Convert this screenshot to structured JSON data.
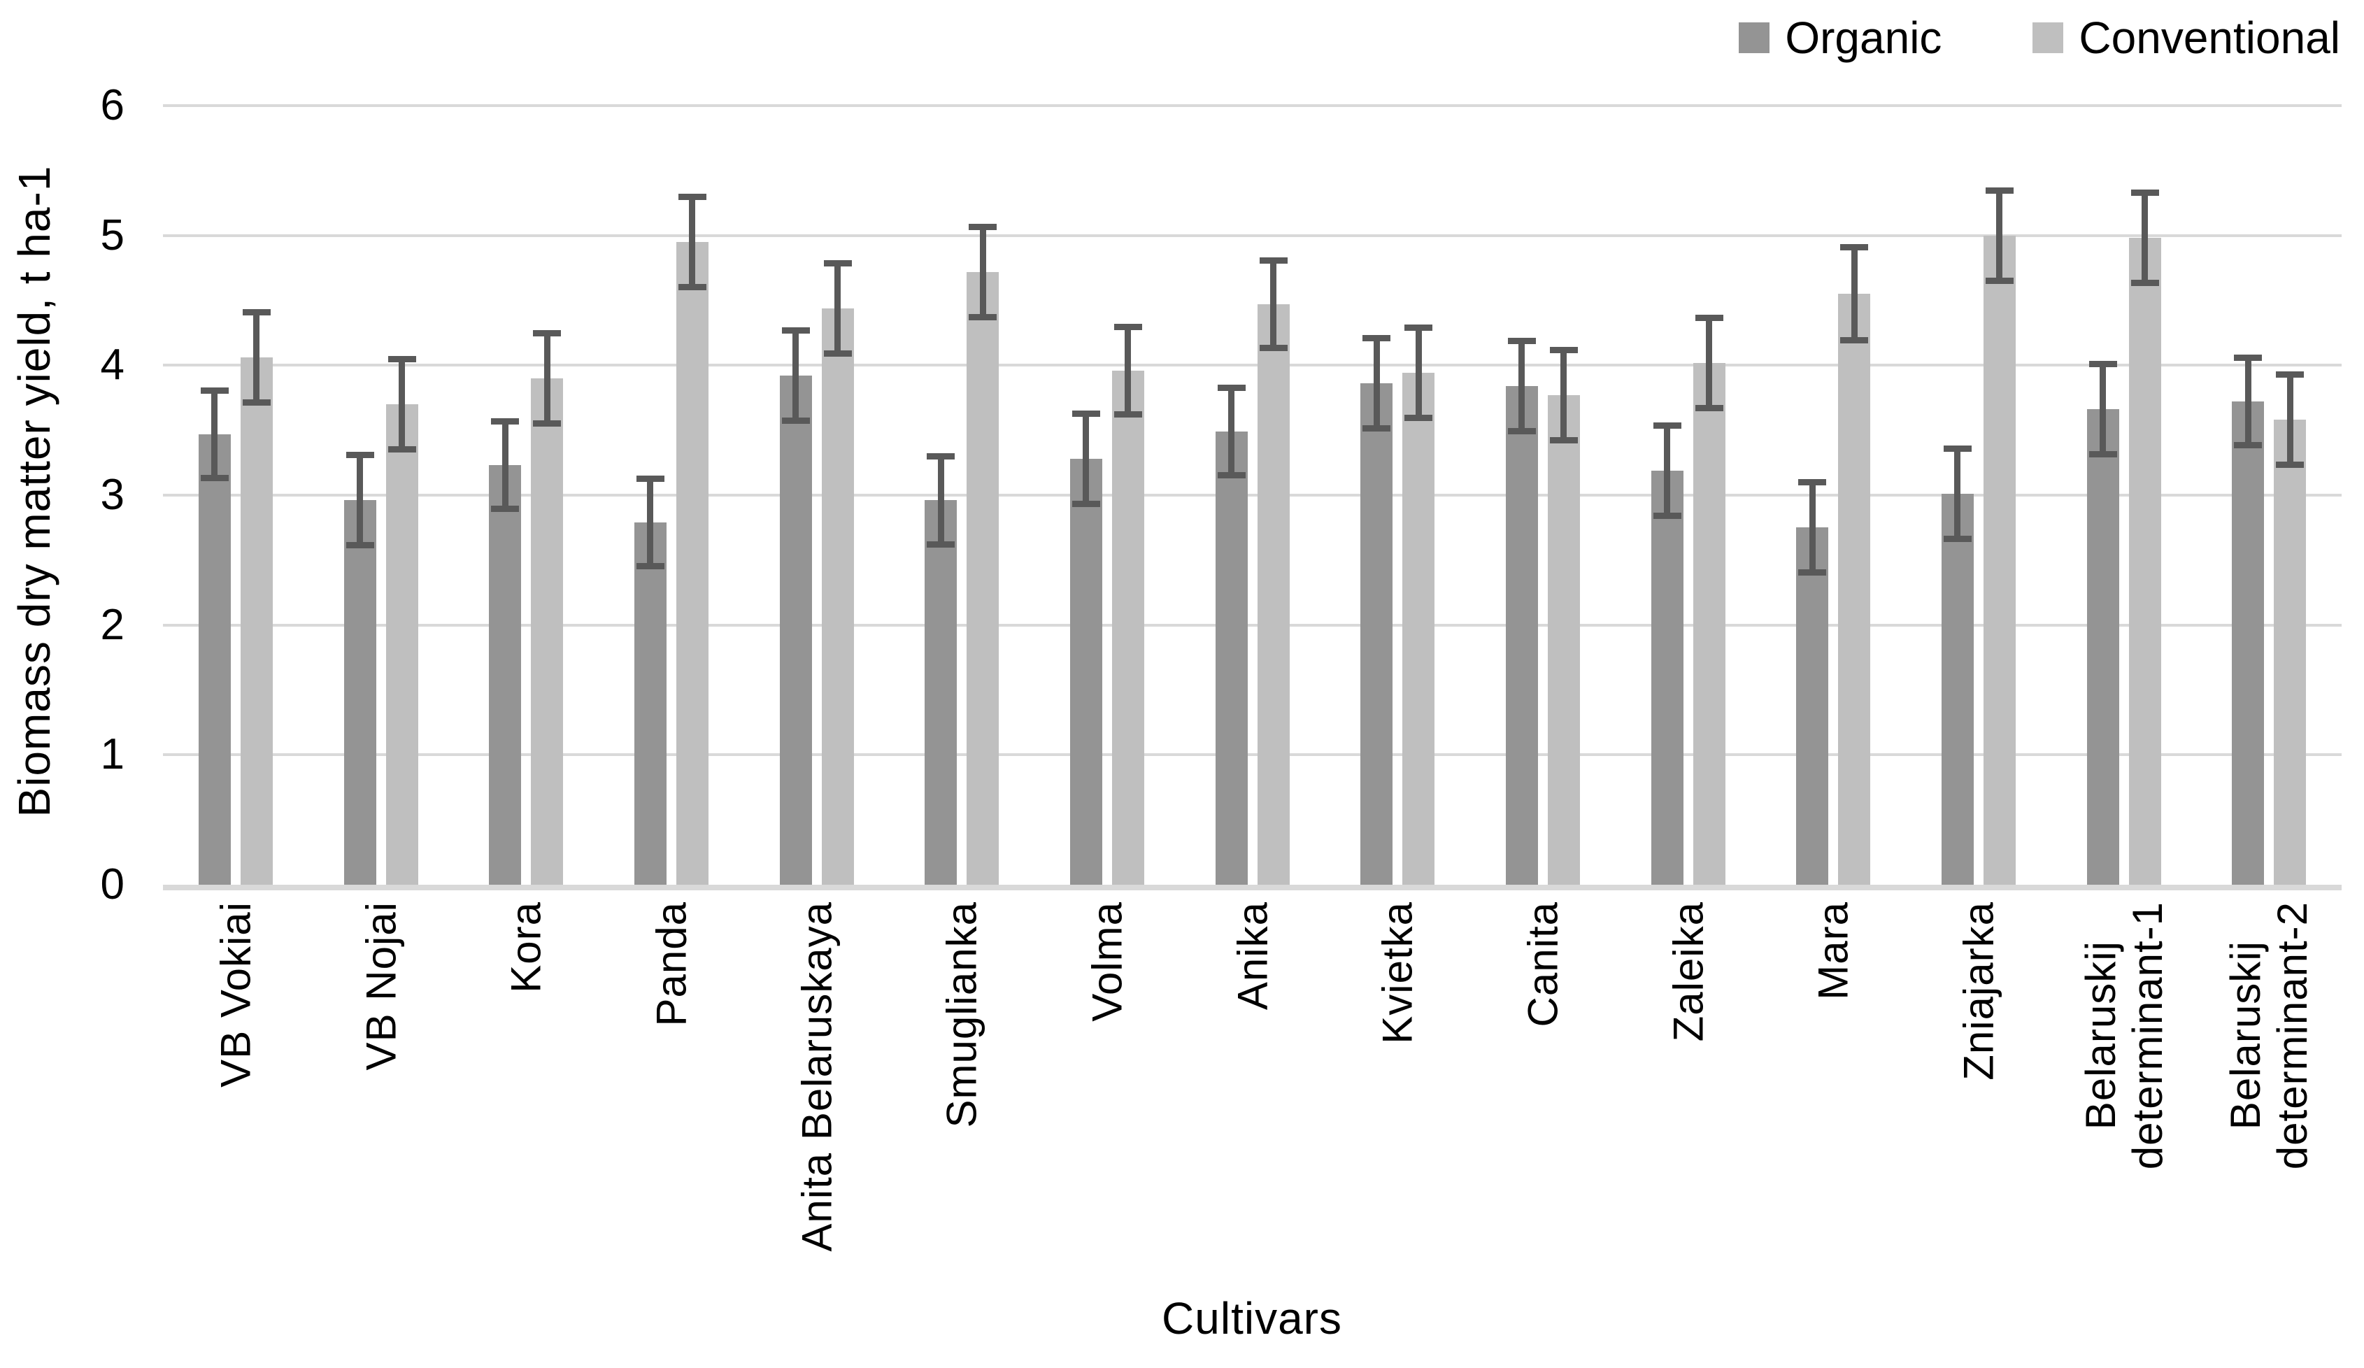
{
  "chart_data": {
    "type": "bar",
    "title": "",
    "xlabel": "Cultivars",
    "ylabel": "Biomass dry matter yield, t ha-1",
    "ylim": [
      0,
      6
    ],
    "ytick_step": 1,
    "ytick_labels": [
      "0",
      "1",
      "2",
      "3",
      "4",
      "5",
      "6"
    ],
    "grid": "horizontal gridlines on",
    "legend_position": "top-right",
    "categories": [
      "VB Vokiai",
      "VB Nojai",
      "Kora",
      "Panda",
      "Anita Belaruskaya",
      "Smuglianka",
      "Volma",
      "Anika",
      "Kvietka",
      "Canita",
      "Zaleika",
      "Mara",
      "Zniajarka",
      "Belaruskij\ndeterminant-1",
      "Belaruskij\ndeterminant-2"
    ],
    "series": [
      {
        "name": "Organic",
        "color": "#949494",
        "values": [
          3.47,
          2.96,
          3.23,
          2.79,
          3.92,
          2.96,
          3.28,
          3.49,
          3.86,
          3.84,
          3.19,
          2.75,
          3.01,
          3.66,
          3.72
        ],
        "errors": [
          0.34,
          0.35,
          0.34,
          0.34,
          0.35,
          0.34,
          0.35,
          0.34,
          0.35,
          0.35,
          0.35,
          0.35,
          0.35,
          0.35,
          0.34
        ]
      },
      {
        "name": "Conventional",
        "color": "#BFBFBF",
        "values": [
          4.06,
          3.7,
          3.9,
          4.95,
          4.44,
          4.72,
          3.96,
          4.47,
          3.94,
          3.77,
          4.02,
          4.55,
          5.0,
          4.98,
          3.58
        ],
        "errors": [
          0.35,
          0.35,
          0.35,
          0.35,
          0.35,
          0.35,
          0.34,
          0.34,
          0.35,
          0.35,
          0.35,
          0.36,
          0.35,
          0.35,
          0.35
        ]
      }
    ],
    "error_bar_color": "#595959",
    "gridline_color": "#D9D9D9",
    "axis_line_color": "#D9D9D9",
    "bar_color_organic": "#949494",
    "bar_color_conventional": "#BFBFBF",
    "text_color": "#000000",
    "background_color": "#FFFFFF"
  }
}
